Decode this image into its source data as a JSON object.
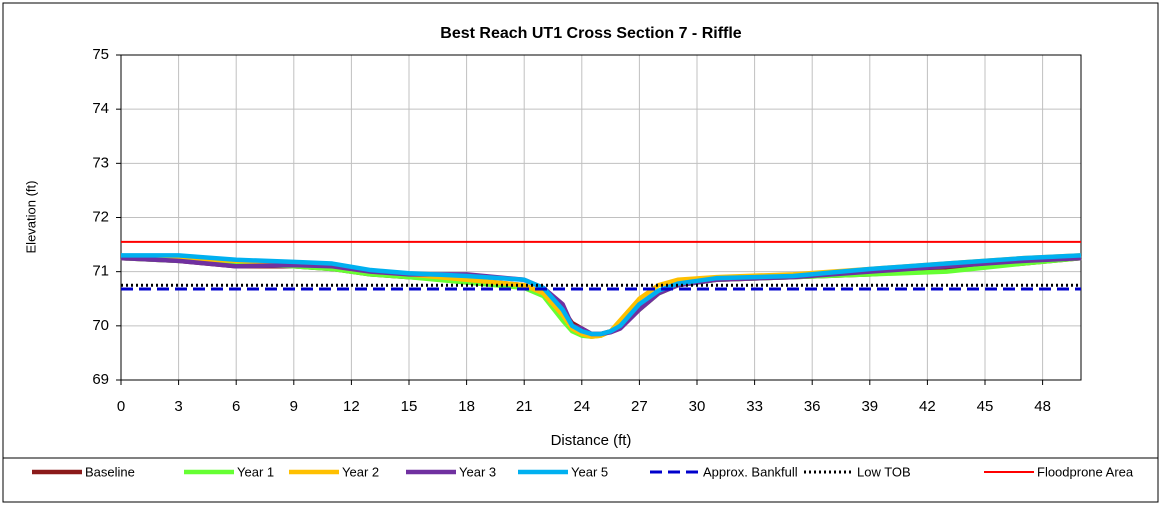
{
  "chart_data": {
    "type": "line",
    "title": "Best Reach UT1 Cross Section 7 - Riffle",
    "xlabel": "Distance (ft)",
    "ylabel": "Elevation (ft)",
    "xlim": [
      0,
      50
    ],
    "xticks": [
      0,
      3,
      6,
      9,
      12,
      15,
      18,
      21,
      24,
      27,
      30,
      33,
      36,
      39,
      42,
      45,
      48
    ],
    "ylim": [
      69,
      75
    ],
    "yticks": [
      69,
      70,
      71,
      72,
      73,
      74,
      75
    ],
    "grid": true,
    "legend": "bottom",
    "series": [
      {
        "name": "Baseline",
        "color": "#8b1a1a",
        "x": [
          0,
          3,
          6,
          9,
          11,
          13,
          15,
          18,
          21,
          22,
          23,
          23.5,
          24,
          24.5,
          25,
          25.5,
          26,
          27,
          28,
          29,
          31,
          35,
          39,
          43,
          47,
          50
        ],
        "values": [
          71.25,
          71.2,
          71.1,
          71.1,
          71.05,
          70.95,
          70.9,
          70.85,
          70.75,
          70.6,
          70.3,
          70.05,
          69.95,
          69.85,
          69.85,
          69.9,
          70.0,
          70.3,
          70.6,
          70.75,
          70.85,
          70.9,
          70.95,
          71.05,
          71.15,
          71.25
        ]
      },
      {
        "name": "Year 1",
        "color": "#66ff33",
        "x": [
          0,
          3,
          6,
          9,
          11,
          13,
          15,
          18,
          21,
          22,
          23,
          23.5,
          24,
          24.5,
          25,
          25.5,
          26,
          27,
          28,
          29,
          31,
          35,
          39,
          43,
          47,
          50
        ],
        "values": [
          71.25,
          71.2,
          71.15,
          71.1,
          71.05,
          70.95,
          70.9,
          70.8,
          70.7,
          70.55,
          70.1,
          69.9,
          69.82,
          69.8,
          69.82,
          69.9,
          70.0,
          70.3,
          70.6,
          70.75,
          70.85,
          70.9,
          70.95,
          71.0,
          71.15,
          71.25
        ]
      },
      {
        "name": "Year 2",
        "color": "#ffc000",
        "x": [
          0,
          3,
          6,
          9,
          11,
          13,
          15,
          18,
          21,
          22,
          23,
          23.5,
          24,
          24.5,
          25,
          25.5,
          26,
          27,
          28,
          29,
          31,
          35,
          39,
          43,
          47,
          50
        ],
        "values": [
          71.25,
          71.25,
          71.2,
          71.15,
          71.1,
          71.0,
          70.95,
          70.85,
          70.75,
          70.6,
          70.2,
          69.95,
          69.85,
          69.8,
          69.82,
          69.9,
          70.1,
          70.5,
          70.75,
          70.85,
          70.9,
          70.95,
          71.05,
          71.15,
          71.25,
          71.3
        ]
      },
      {
        "name": "Year 3",
        "color": "#7030a0",
        "x": [
          0,
          3,
          6,
          9,
          11,
          13,
          15,
          18,
          21,
          22,
          23,
          23.5,
          24,
          24.5,
          25,
          25.5,
          26,
          27,
          28,
          29,
          31,
          35,
          39,
          43,
          47,
          50
        ],
        "values": [
          71.25,
          71.2,
          71.1,
          71.12,
          71.1,
          71.0,
          70.95,
          70.95,
          70.85,
          70.7,
          70.4,
          70.0,
          69.95,
          69.85,
          69.85,
          69.88,
          69.95,
          70.3,
          70.6,
          70.75,
          70.85,
          70.9,
          71.0,
          71.1,
          71.2,
          71.25
        ]
      },
      {
        "name": "Year 5",
        "color": "#00b0f0",
        "x": [
          0,
          3,
          6,
          9,
          11,
          13,
          15,
          18,
          21,
          22,
          23,
          23.5,
          24,
          24.5,
          25,
          25.5,
          26,
          27,
          28,
          29,
          31,
          35,
          39,
          43,
          47,
          50
        ],
        "values": [
          71.3,
          71.3,
          71.22,
          71.18,
          71.15,
          71.03,
          70.97,
          70.92,
          70.85,
          70.7,
          70.3,
          70.0,
          69.9,
          69.85,
          69.85,
          69.9,
          70.0,
          70.4,
          70.65,
          70.78,
          70.88,
          70.92,
          71.05,
          71.15,
          71.25,
          71.3
        ]
      },
      {
        "name": "Approx. Bankfull",
        "color": "#0000cc",
        "line_style": "dashed",
        "x": [
          0,
          50
        ],
        "values": [
          70.68,
          70.68
        ]
      },
      {
        "name": "Low TOB",
        "color": "#000000",
        "line_style": "dotted",
        "x": [
          0,
          50
        ],
        "values": [
          70.75,
          70.75
        ]
      },
      {
        "name": "Floodprone Area",
        "color": "#ff0000",
        "line_style": "solid",
        "x": [
          0,
          50
        ],
        "values": [
          71.55,
          71.55
        ]
      }
    ]
  }
}
